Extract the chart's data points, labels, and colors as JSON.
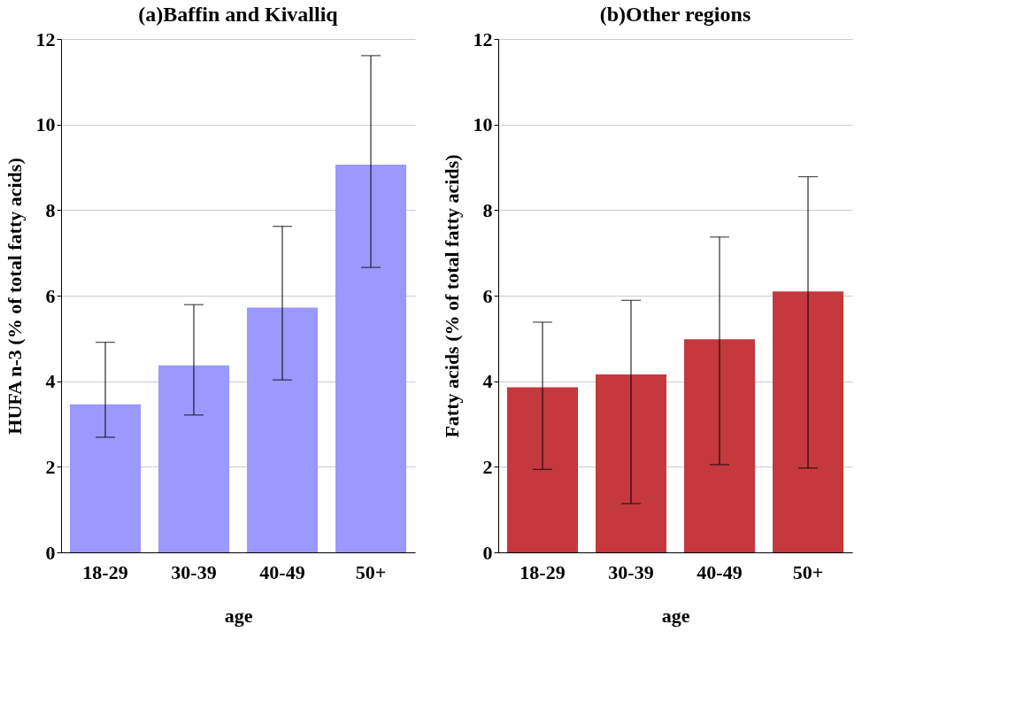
{
  "chart_data": [
    {
      "type": "bar",
      "title": "(a)Baffin and Kivalliq",
      "xlabel": "age",
      "ylabel": "HUFA n-3 (% of total fatty acids)",
      "categories": [
        "18-29",
        "30-39",
        "40-49",
        "50+"
      ],
      "series": [
        {
          "color": "#9999ff",
          "values": [
            3.46,
            4.37,
            5.72,
            9.06
          ],
          "errors": [
            [
              2.69,
              4.91
            ],
            [
              3.21,
              5.79
            ],
            [
              4.03,
              7.62
            ],
            [
              6.66,
              11.61
            ]
          ]
        }
      ],
      "ylim": [
        0,
        12
      ],
      "yticks": [
        0,
        2,
        4,
        6,
        8,
        10,
        12
      ],
      "grid": "y"
    },
    {
      "type": "bar",
      "title": "(b)Other regions",
      "xlabel": "age",
      "ylabel": "Fatty acids (% of total fatty acids)",
      "categories": [
        "18-29",
        "30-39",
        "40-49",
        "50+"
      ],
      "series": [
        {
          "color": "#c4383e",
          "values": [
            3.86,
            4.16,
            4.98,
            6.1
          ],
          "errors": [
            [
              1.94,
              5.38
            ],
            [
              1.14,
              5.89
            ],
            [
              2.05,
              7.37
            ],
            [
              1.97,
              8.78
            ]
          ]
        }
      ],
      "ylim": [
        0,
        12
      ],
      "yticks": [
        0,
        2,
        4,
        6,
        8,
        10,
        12
      ],
      "grid": "y"
    }
  ]
}
